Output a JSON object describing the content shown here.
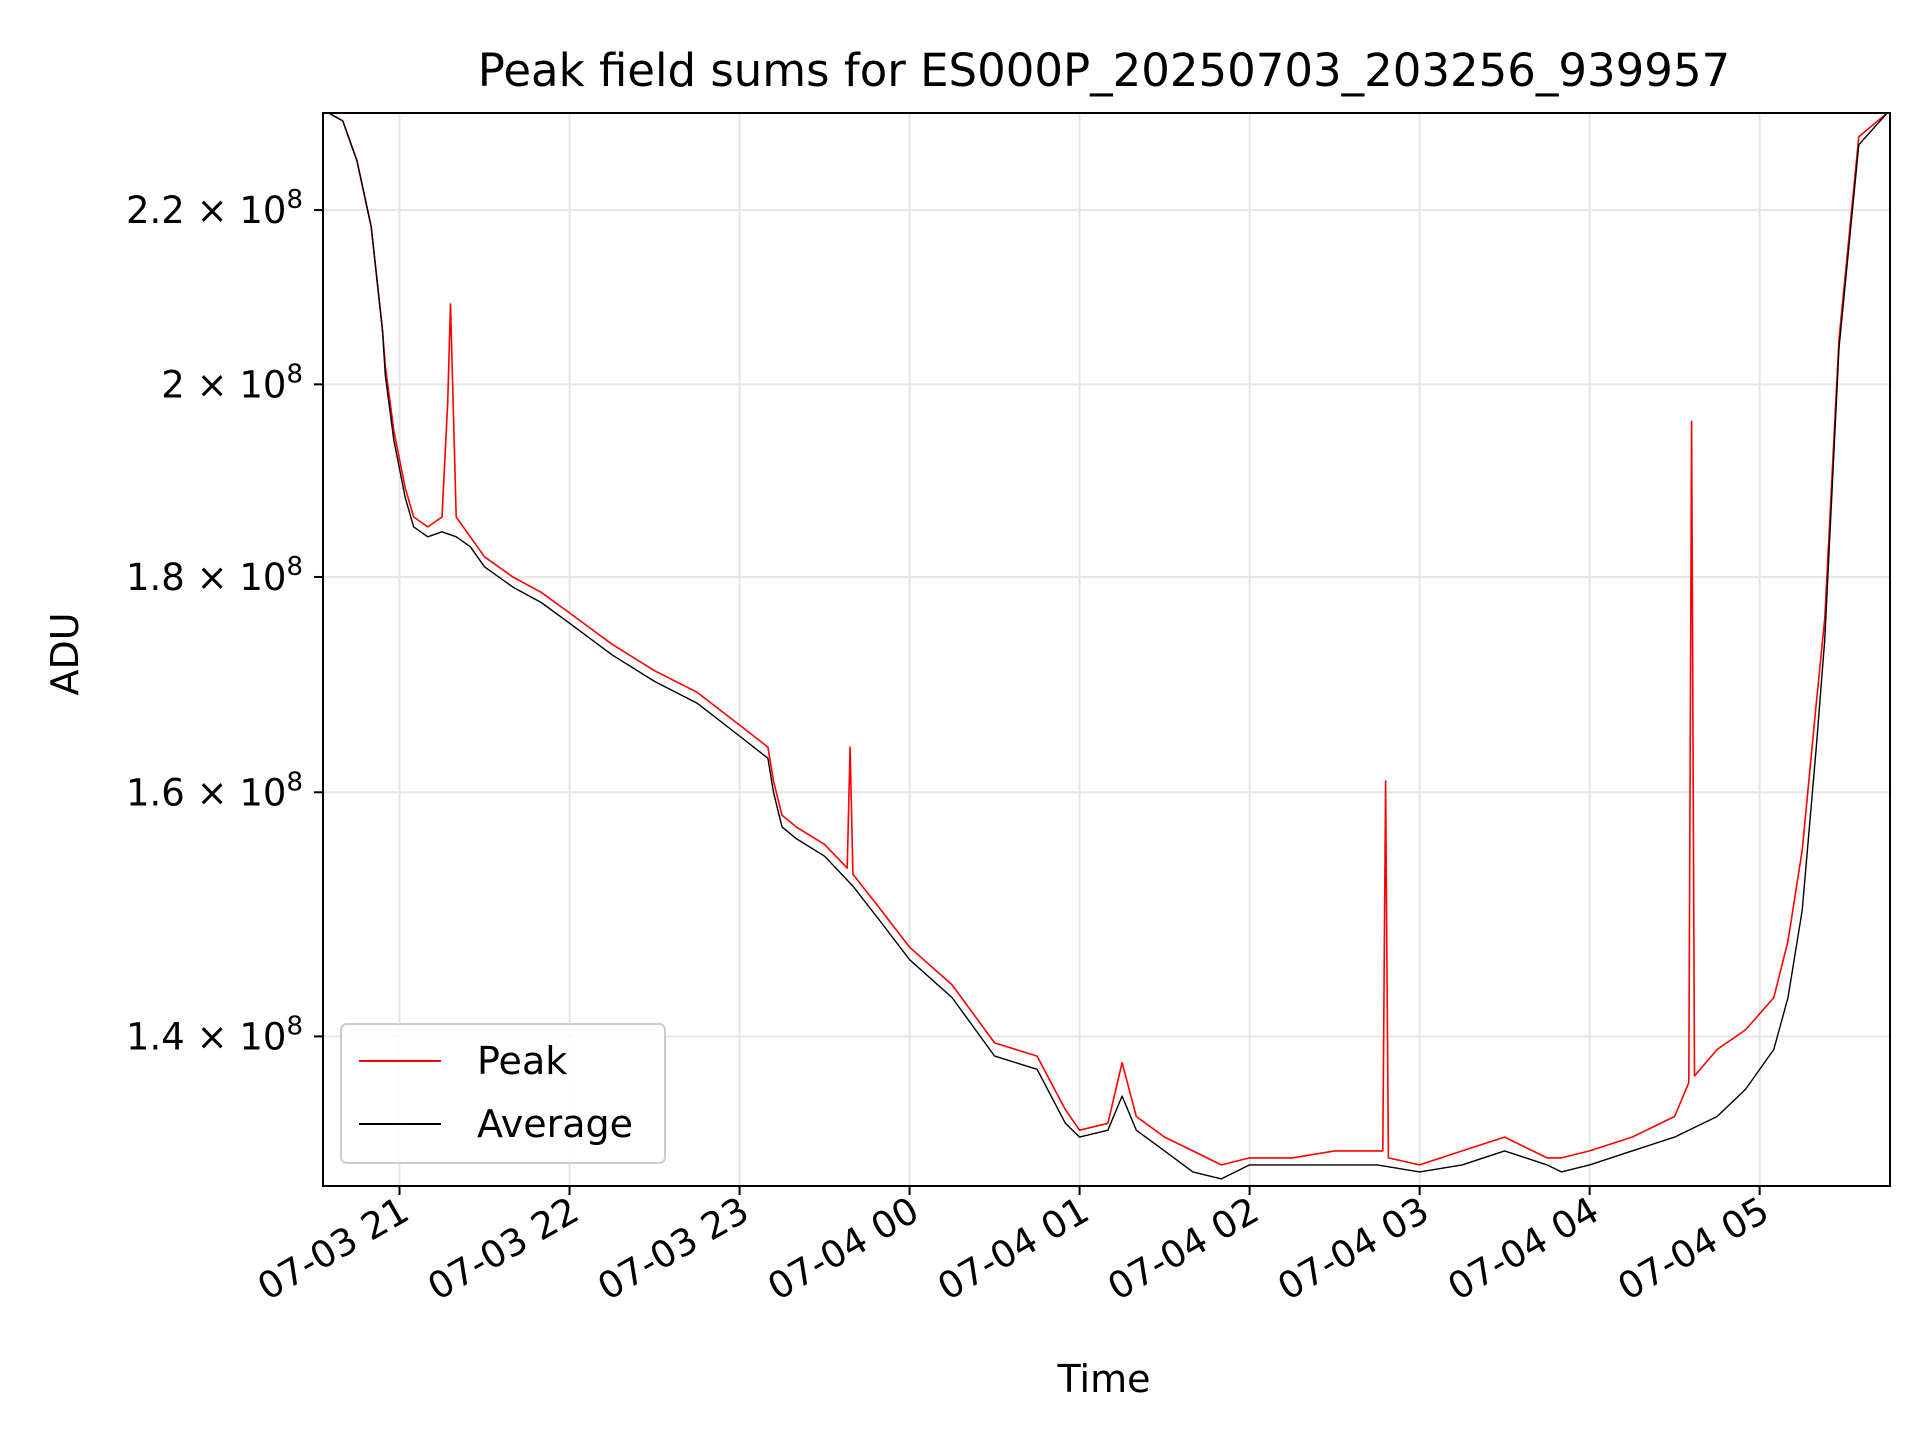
{
  "chart_data": {
    "type": "line",
    "title": "Peak field sums for ES000P_20250703_203256_939957",
    "xlabel": "Time",
    "ylabel": "ADU",
    "y_scale": "log",
    "ylim": [
      129000000,
      232000000
    ],
    "xlim": [
      "2025-07-03 20:33",
      "2025-07-04 05:46"
    ],
    "grid": true,
    "legend_position": "lower-left",
    "x_ticks": [
      {
        "t": "2025-07-03 21:00",
        "label": "07-03 21"
      },
      {
        "t": "2025-07-03 22:00",
        "label": "07-03 22"
      },
      {
        "t": "2025-07-03 23:00",
        "label": "07-03 23"
      },
      {
        "t": "2025-07-04 00:00",
        "label": "07-04 00"
      },
      {
        "t": "2025-07-04 01:00",
        "label": "07-04 01"
      },
      {
        "t": "2025-07-04 02:00",
        "label": "07-04 02"
      },
      {
        "t": "2025-07-04 03:00",
        "label": "07-04 03"
      },
      {
        "t": "2025-07-04 04:00",
        "label": "07-04 04"
      },
      {
        "t": "2025-07-04 05:00",
        "label": "07-04 05"
      }
    ],
    "y_ticks": [
      {
        "value": 140000000,
        "mantissa": "1.4",
        "base": "× 10",
        "exp": "8"
      },
      {
        "value": 160000000,
        "mantissa": "1.6",
        "base": "× 10",
        "exp": "8"
      },
      {
        "value": 180000000,
        "mantissa": "1.8",
        "base": "× 10",
        "exp": "8"
      },
      {
        "value": 200000000,
        "mantissa": "2",
        "base": "× 10",
        "exp": "8"
      },
      {
        "value": 220000000,
        "mantissa": "2.2",
        "base": "× 10",
        "exp": "8"
      }
    ],
    "series": [
      {
        "name": "Peak",
        "color": "#ff0000",
        "x": [
          "2025-07-03 20:35",
          "2025-07-03 20:40",
          "2025-07-03 20:45",
          "2025-07-03 20:50",
          "2025-07-03 20:54",
          "2025-07-03 20:55",
          "2025-07-03 20:58",
          "2025-07-03 21:02",
          "2025-07-03 21:05",
          "2025-07-03 21:10",
          "2025-07-03 21:15",
          "2025-07-03 21:17",
          "2025-07-03 21:18",
          "2025-07-03 21:20",
          "2025-07-03 21:25",
          "2025-07-03 21:30",
          "2025-07-03 21:40",
          "2025-07-03 21:50",
          "2025-07-03 22:00",
          "2025-07-03 22:15",
          "2025-07-03 22:30",
          "2025-07-03 22:45",
          "2025-07-03 23:00",
          "2025-07-03 23:10",
          "2025-07-03 23:12",
          "2025-07-03 23:15",
          "2025-07-03 23:20",
          "2025-07-03 23:30",
          "2025-07-03 23:38",
          "2025-07-03 23:39",
          "2025-07-03 23:40",
          "2025-07-03 23:50",
          "2025-07-04 00:00",
          "2025-07-04 00:15",
          "2025-07-04 00:30",
          "2025-07-04 00:45",
          "2025-07-04 00:55",
          "2025-07-04 01:00",
          "2025-07-04 01:10",
          "2025-07-04 01:15",
          "2025-07-04 01:20",
          "2025-07-04 01:30",
          "2025-07-04 01:40",
          "2025-07-04 01:50",
          "2025-07-04 02:00",
          "2025-07-04 02:15",
          "2025-07-04 02:30",
          "2025-07-04 02:47",
          "2025-07-04 02:48",
          "2025-07-04 02:49",
          "2025-07-04 03:00",
          "2025-07-04 03:15",
          "2025-07-04 03:30",
          "2025-07-04 03:45",
          "2025-07-04 03:50",
          "2025-07-04 04:00",
          "2025-07-04 04:15",
          "2025-07-04 04:30",
          "2025-07-04 04:35",
          "2025-07-04 04:36",
          "2025-07-04 04:37",
          "2025-07-04 04:45",
          "2025-07-04 04:55",
          "2025-07-04 05:05",
          "2025-07-04 05:10",
          "2025-07-04 05:15",
          "2025-07-04 05:20",
          "2025-07-04 05:23",
          "2025-07-04 05:28",
          "2025-07-04 05:35",
          "2025-07-04 05:45"
        ],
        "values": [
          232000000,
          231000000,
          226000000,
          218000000,
          206000000,
          202000000,
          195000000,
          189000000,
          186000000,
          185000000,
          186000000,
          198000000,
          209000000,
          186000000,
          184000000,
          182000000,
          180000000,
          178500000,
          176500000,
          173500000,
          171000000,
          169000000,
          166000000,
          164000000,
          161000000,
          158000000,
          157000000,
          155500000,
          153500000,
          164000000,
          153000000,
          150000000,
          147000000,
          144000000,
          139500000,
          138500000,
          134500000,
          133000000,
          133500000,
          138000000,
          134000000,
          132500000,
          131500000,
          130500000,
          131000000,
          131000000,
          131500000,
          131500000,
          161000000,
          131000000,
          130500000,
          131500000,
          132500000,
          131000000,
          131000000,
          131500000,
          132500000,
          134000000,
          136500000,
          196000000,
          137000000,
          139000000,
          140500000,
          143000000,
          147500000,
          155000000,
          168000000,
          176000000,
          205000000,
          229000000,
          232000000
        ]
      },
      {
        "name": "Average",
        "color": "#000000",
        "x": [
          "2025-07-03 20:35",
          "2025-07-03 20:40",
          "2025-07-03 20:45",
          "2025-07-03 20:50",
          "2025-07-03 20:54",
          "2025-07-03 20:55",
          "2025-07-03 20:58",
          "2025-07-03 21:02",
          "2025-07-03 21:05",
          "2025-07-03 21:10",
          "2025-07-03 21:15",
          "2025-07-03 21:20",
          "2025-07-03 21:25",
          "2025-07-03 21:30",
          "2025-07-03 21:40",
          "2025-07-03 21:50",
          "2025-07-03 22:00",
          "2025-07-03 22:15",
          "2025-07-03 22:30",
          "2025-07-03 22:45",
          "2025-07-03 23:00",
          "2025-07-03 23:10",
          "2025-07-03 23:12",
          "2025-07-03 23:15",
          "2025-07-03 23:20",
          "2025-07-03 23:30",
          "2025-07-03 23:40",
          "2025-07-03 23:50",
          "2025-07-04 00:00",
          "2025-07-04 00:15",
          "2025-07-04 00:30",
          "2025-07-04 00:45",
          "2025-07-04 00:55",
          "2025-07-04 01:00",
          "2025-07-04 01:10",
          "2025-07-04 01:15",
          "2025-07-04 01:20",
          "2025-07-04 01:30",
          "2025-07-04 01:40",
          "2025-07-04 01:50",
          "2025-07-04 02:00",
          "2025-07-04 02:15",
          "2025-07-04 02:30",
          "2025-07-04 02:45",
          "2025-07-04 03:00",
          "2025-07-04 03:15",
          "2025-07-04 03:30",
          "2025-07-04 03:45",
          "2025-07-04 03:50",
          "2025-07-04 04:00",
          "2025-07-04 04:15",
          "2025-07-04 04:30",
          "2025-07-04 04:45",
          "2025-07-04 04:55",
          "2025-07-04 05:05",
          "2025-07-04 05:10",
          "2025-07-04 05:15",
          "2025-07-04 05:20",
          "2025-07-04 05:23",
          "2025-07-04 05:28",
          "2025-07-04 05:35",
          "2025-07-04 05:45"
        ],
        "values": [
          232000000,
          231000000,
          226000000,
          218000000,
          206000000,
          201000000,
          194000000,
          188000000,
          185000000,
          184000000,
          184500000,
          184000000,
          183000000,
          181000000,
          179000000,
          177500000,
          175500000,
          172500000,
          170000000,
          168000000,
          165000000,
          163000000,
          160000000,
          157000000,
          156000000,
          154500000,
          152000000,
          149000000,
          146000000,
          143000000,
          138500000,
          137500000,
          133500000,
          132500000,
          133000000,
          135500000,
          133000000,
          131500000,
          130000000,
          129500000,
          130500000,
          130500000,
          130500000,
          130500000,
          130000000,
          130500000,
          131500000,
          130500000,
          130000000,
          130500000,
          131500000,
          132500000,
          134000000,
          136000000,
          139000000,
          143000000,
          150000000,
          164000000,
          174000000,
          204000000,
          228000000,
          232000000
        ]
      }
    ]
  }
}
